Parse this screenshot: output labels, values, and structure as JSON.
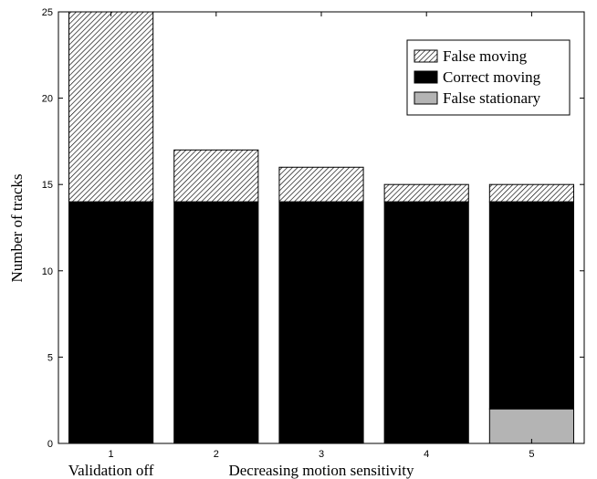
{
  "chart_data": {
    "type": "bar",
    "stacked": true,
    "categories": [
      "1",
      "2",
      "3",
      "4",
      "5"
    ],
    "category_captions": [
      {
        "category": "1",
        "text": "Validation off"
      },
      {
        "category": "3",
        "text": "Decreasing motion sensitivity"
      }
    ],
    "series": [
      {
        "name": "False stationary",
        "values": [
          0,
          0,
          0,
          0,
          2
        ],
        "color": "#b4b4b4",
        "pattern": "solid"
      },
      {
        "name": "Correct moving",
        "values": [
          14,
          14,
          14,
          14,
          12
        ],
        "color": "#000000",
        "pattern": "solid"
      },
      {
        "name": "False moving",
        "values": [
          11,
          3,
          2,
          1,
          1
        ],
        "color": "#ffffff",
        "pattern": "hatch"
      }
    ],
    "legend_order": [
      "False moving",
      "Correct moving",
      "False stationary"
    ],
    "xlabel": "",
    "ylabel": "Number of tracks",
    "ylim": [
      0,
      25
    ],
    "yticks": [
      0,
      5,
      10,
      15,
      20,
      25
    ],
    "grid": false,
    "legend_position": "top-right"
  }
}
